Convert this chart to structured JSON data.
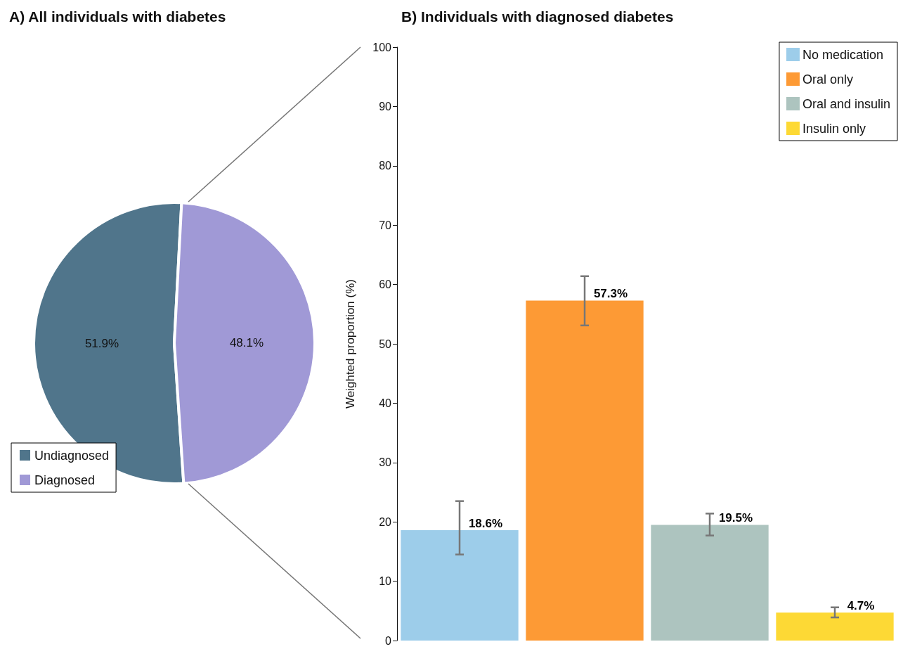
{
  "chart_data": [
    {
      "type": "pie",
      "title": "A) All individuals with diabetes",
      "categories": [
        "Undiagnosed",
        "Diagnosed"
      ],
      "values": [
        51.9,
        48.1
      ],
      "colors": [
        "#50758b",
        "#a099d6"
      ],
      "value_labels": [
        "51.9%",
        "48.1%"
      ],
      "legend": "bottom left"
    },
    {
      "type": "bar",
      "title": "B) Individuals with diagnosed diabetes",
      "ylabel": "Weighted proportion (%)",
      "categories": [
        null,
        null,
        null,
        null
      ],
      "stacked": true,
      "series": [
        {
          "name": "No medication",
          "color": "#9dcdea",
          "values": [
            18.6,
            null,
            null,
            null
          ],
          "errors": [
            [
              14.5,
              23.5
            ],
            null,
            null,
            null
          ],
          "value_labels": [
            "18.6%",
            null,
            null,
            null
          ]
        },
        {
          "name": "Oral only",
          "color": "#fd9a35",
          "values": [
            null,
            57.3,
            null,
            null
          ],
          "errors": [
            null,
            [
              53.1,
              61.4
            ],
            null,
            null
          ],
          "value_labels": [
            null,
            "57.3%",
            null,
            null
          ]
        },
        {
          "name": "Oral and insulin",
          "color": "#adc4bf",
          "values": [
            null,
            null,
            19.5,
            null
          ],
          "errors": [
            null,
            null,
            [
              17.7,
              21.4
            ],
            null
          ],
          "value_labels": [
            null,
            null,
            "19.5%",
            null
          ]
        },
        {
          "name": "Insulin only",
          "color": "#fdd935",
          "values": [
            null,
            null,
            null,
            4.7
          ],
          "errors": [
            null,
            null,
            null,
            [
              3.9,
              5.6
            ]
          ],
          "value_labels": [
            null,
            null,
            null,
            "4.7%"
          ]
        }
      ],
      "ylim": [
        0,
        100
      ],
      "yticks": [
        0,
        10,
        20,
        30,
        40,
        50,
        60,
        70,
        80,
        90,
        100
      ],
      "legend": "top right",
      "grid": false
    }
  ]
}
